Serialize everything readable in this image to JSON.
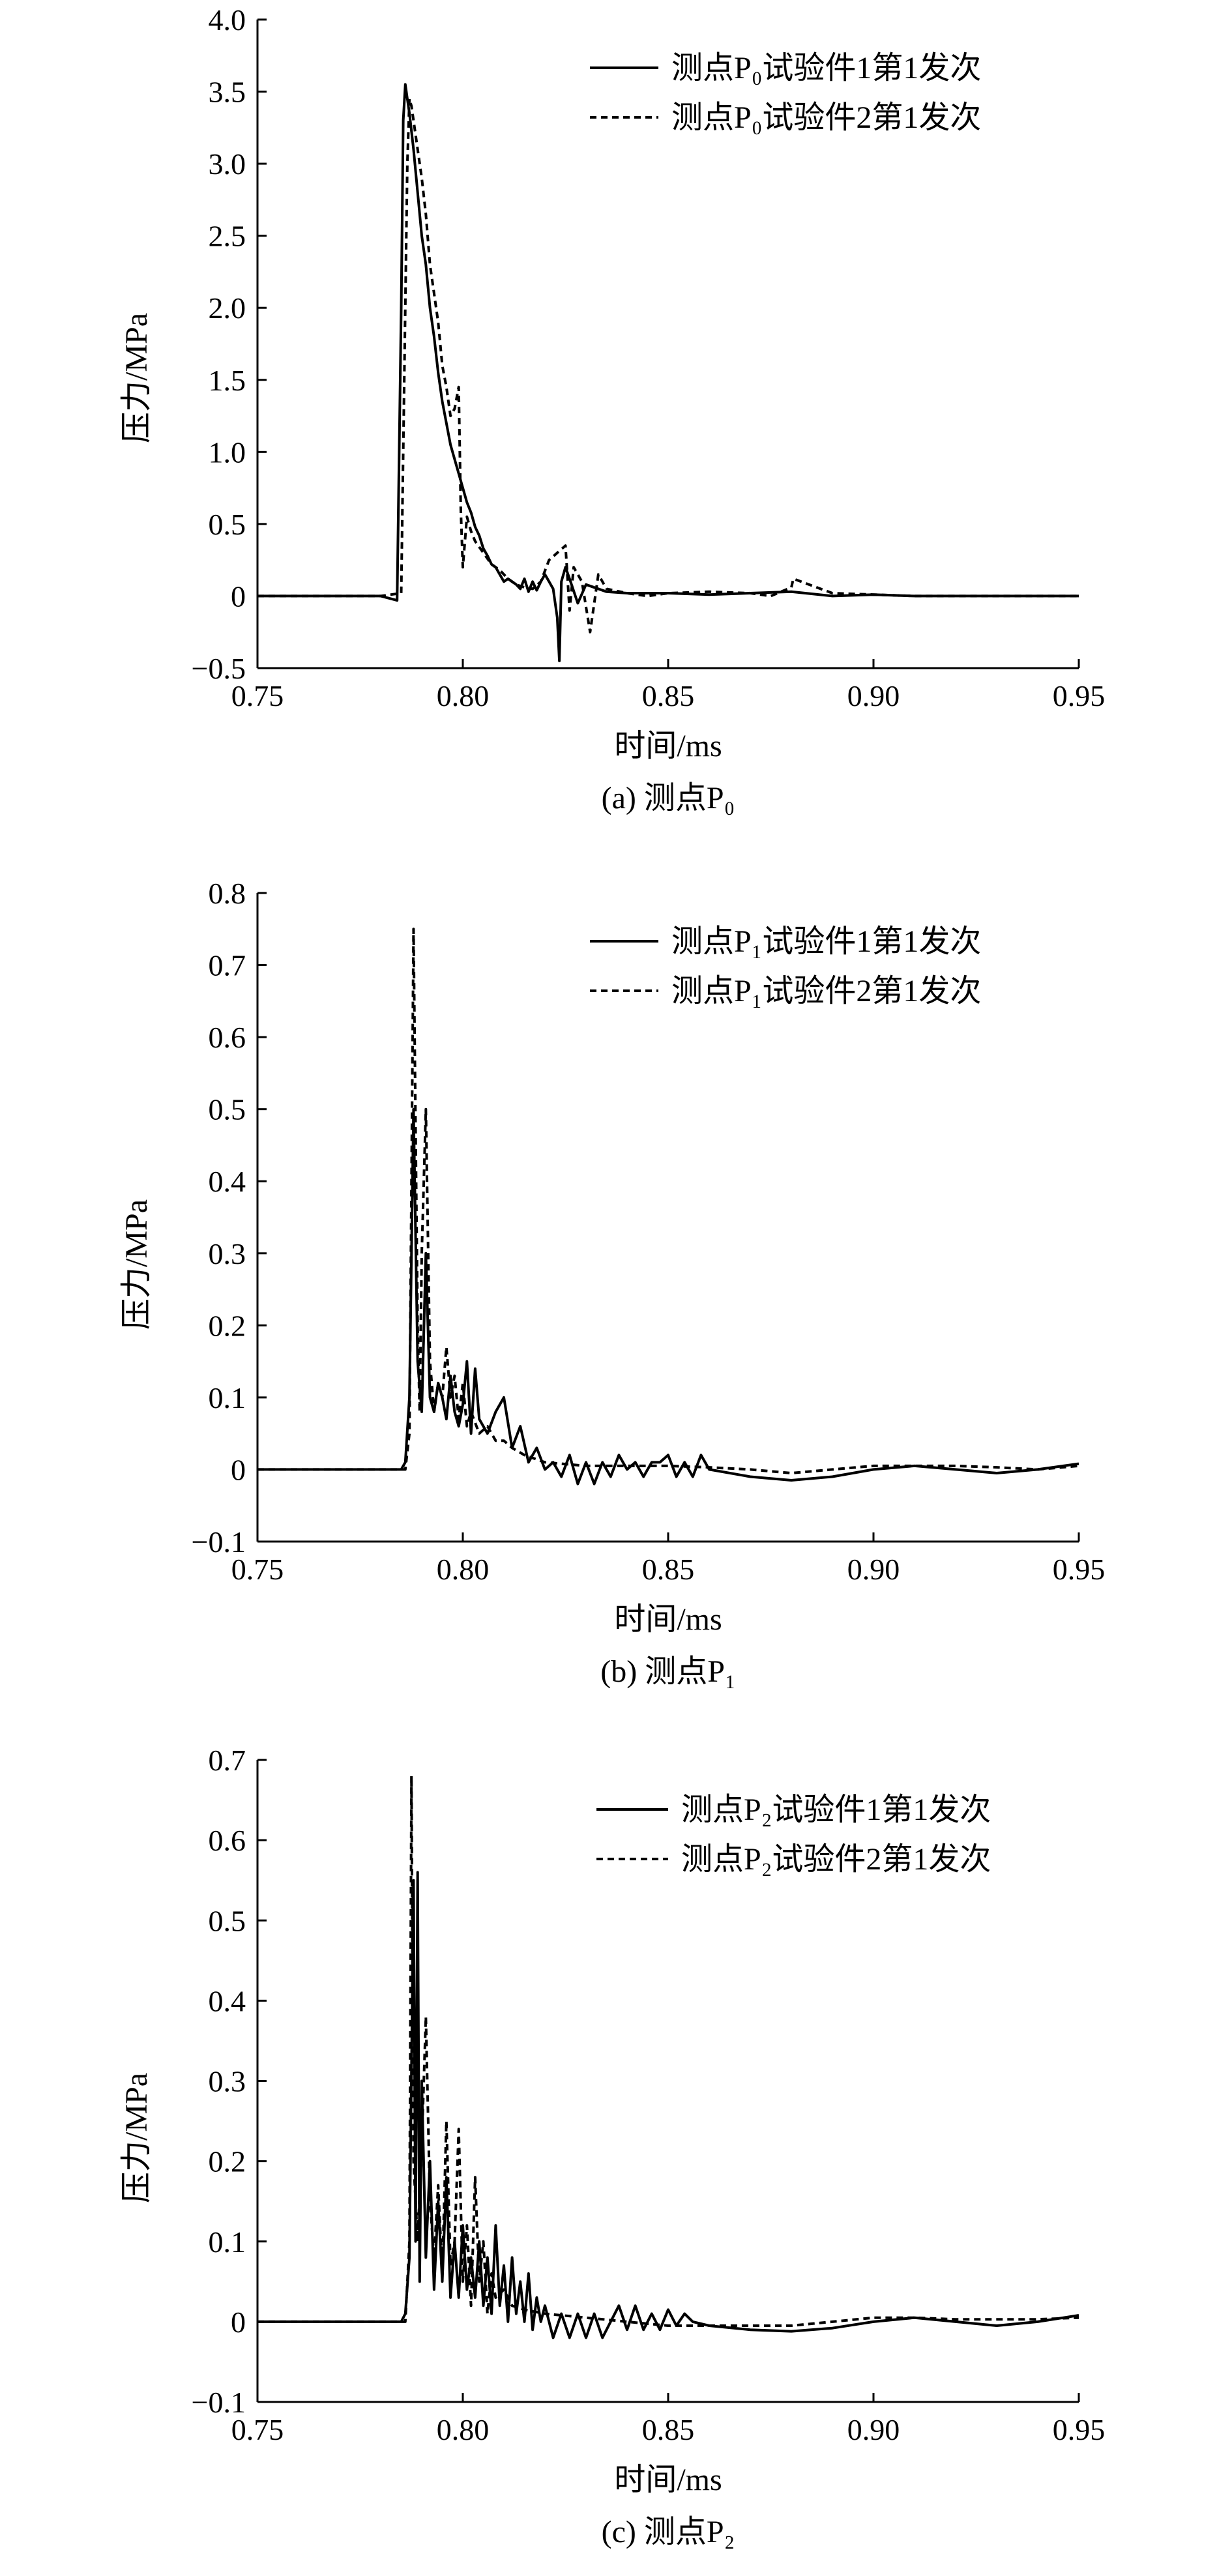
{
  "figure": {
    "panels": [
      {
        "caption": "(a) 测点P₀",
        "legend": [
          "测点P₀试验件1第1发次",
          "测点P₀试验件2第1发次"
        ],
        "ylabel": "压力/MPa",
        "xlabel": "时间/ms",
        "xticks": [
          "0.75",
          "0.80",
          "0.85",
          "0.90",
          "0.95"
        ],
        "yticks": [
          "−0.5",
          "0",
          "0.5",
          "1.0",
          "1.5",
          "2.0",
          "2.5",
          "3.0",
          "3.5",
          "4.0"
        ]
      },
      {
        "caption": "(b) 测点P₁",
        "legend": [
          "测点P₁试验件1第1发次",
          "测点P₁试验件2第1发次"
        ],
        "ylabel": "压力/MPa",
        "xlabel": "时间/ms",
        "xticks": [
          "0.75",
          "0.80",
          "0.85",
          "0.90",
          "0.95"
        ],
        "yticks": [
          "−0.1",
          "0",
          "0.1",
          "0.2",
          "0.3",
          "0.4",
          "0.5",
          "0.6",
          "0.7",
          "0.8"
        ]
      },
      {
        "caption": "(c) 测点P₂",
        "legend": [
          "测点P₂试验件1第1发次",
          "测点P₂试验件2第1发次"
        ],
        "ylabel": "压力/MPa",
        "xlabel": "时间/ms",
        "xticks": [
          "0.75",
          "0.80",
          "0.85",
          "0.90",
          "0.95"
        ],
        "yticks": [
          "−0.1",
          "0",
          "0.1",
          "0.2",
          "0.3",
          "0.4",
          "0.5",
          "0.6",
          "0.7"
        ]
      }
    ]
  },
  "chart_data": [
    {
      "type": "line",
      "xlabel": "时间/ms",
      "ylabel": "压力/MPa",
      "xlim": [
        0.75,
        0.95
      ],
      "ylim": [
        -0.5,
        4.0
      ],
      "grid": false,
      "legend_position": "top-right",
      "series": [
        {
          "name": "测点P₀试验件1第1发次",
          "style": "solid",
          "x": [
            0.75,
            0.78,
            0.784,
            0.785,
            0.7855,
            0.786,
            0.7865,
            0.787,
            0.788,
            0.789,
            0.79,
            0.791,
            0.792,
            0.793,
            0.794,
            0.795,
            0.796,
            0.797,
            0.798,
            0.799,
            0.8,
            0.801,
            0.802,
            0.803,
            0.804,
            0.805,
            0.806,
            0.807,
            0.808,
            0.809,
            0.81,
            0.811,
            0.812,
            0.813,
            0.814,
            0.815,
            0.816,
            0.817,
            0.818,
            0.819,
            0.82,
            0.821,
            0.822,
            0.823,
            0.8235,
            0.824,
            0.825,
            0.826,
            0.828,
            0.83,
            0.835,
            0.84,
            0.85,
            0.86,
            0.87,
            0.88,
            0.89,
            0.9,
            0.91,
            0.92,
            0.95
          ],
          "y": [
            0,
            0,
            -0.03,
            2.0,
            3.3,
            3.55,
            3.45,
            3.35,
            3.1,
            2.8,
            2.5,
            2.3,
            2.0,
            1.8,
            1.55,
            1.35,
            1.2,
            1.05,
            0.95,
            0.85,
            0.75,
            0.65,
            0.58,
            0.48,
            0.42,
            0.33,
            0.28,
            0.22,
            0.2,
            0.15,
            0.1,
            0.12,
            0.1,
            0.08,
            0.05,
            0.12,
            0.03,
            0.1,
            0.04,
            0.1,
            0.15,
            0.1,
            0.05,
            -0.15,
            -0.45,
            0.1,
            0.2,
            0.12,
            -0.05,
            0.08,
            0.03,
            0.02,
            0.02,
            0.01,
            0.02,
            0.03,
            0.0,
            0.01,
            0.0,
            0.0,
            0.0
          ]
        },
        {
          "name": "测点P₀试验件2第1发次",
          "style": "dashed",
          "x": [
            0.75,
            0.78,
            0.785,
            0.7865,
            0.787,
            0.7875,
            0.788,
            0.789,
            0.79,
            0.791,
            0.792,
            0.793,
            0.794,
            0.795,
            0.796,
            0.797,
            0.798,
            0.799,
            0.7995,
            0.8,
            0.801,
            0.802,
            0.803,
            0.805,
            0.807,
            0.809,
            0.811,
            0.813,
            0.815,
            0.817,
            0.819,
            0.821,
            0.823,
            0.825,
            0.826,
            0.827,
            0.829,
            0.831,
            0.833,
            0.835,
            0.84,
            0.845,
            0.85,
            0.86,
            0.87,
            0.875,
            0.88,
            0.8805,
            0.89,
            0.9,
            0.91,
            0.95
          ],
          "y": [
            0,
            0,
            0.02,
            3.0,
            3.45,
            3.4,
            3.3,
            3.1,
            2.9,
            2.65,
            2.3,
            2.1,
            1.9,
            1.6,
            1.45,
            1.25,
            1.3,
            1.45,
            0.6,
            0.2,
            0.55,
            0.45,
            0.38,
            0.3,
            0.22,
            0.18,
            0.12,
            0.08,
            0.06,
            0.05,
            0.1,
            0.25,
            0.3,
            0.35,
            -0.1,
            0.2,
            0.1,
            -0.25,
            0.15,
            0.05,
            0.02,
            0.0,
            0.02,
            0.03,
            0.02,
            0.0,
            0.06,
            0.12,
            0.02,
            0.01,
            0.0,
            0.0
          ]
        }
      ]
    },
    {
      "type": "line",
      "xlabel": "时间/ms",
      "ylabel": "压力/MPa",
      "xlim": [
        0.75,
        0.95
      ],
      "ylim": [
        -0.1,
        0.8
      ],
      "grid": false,
      "legend_position": "top-right",
      "series": [
        {
          "name": "测点P₁试验件1第1发次",
          "style": "solid",
          "x": [
            0.75,
            0.785,
            0.786,
            0.787,
            0.788,
            0.789,
            0.79,
            0.791,
            0.792,
            0.793,
            0.794,
            0.795,
            0.796,
            0.797,
            0.798,
            0.799,
            0.8,
            0.801,
            0.802,
            0.803,
            0.804,
            0.806,
            0.808,
            0.81,
            0.812,
            0.814,
            0.816,
            0.818,
            0.82,
            0.822,
            0.824,
            0.826,
            0.828,
            0.83,
            0.832,
            0.834,
            0.836,
            0.838,
            0.84,
            0.842,
            0.844,
            0.846,
            0.848,
            0.85,
            0.852,
            0.854,
            0.856,
            0.858,
            0.86,
            0.87,
            0.88,
            0.89,
            0.9,
            0.91,
            0.92,
            0.93,
            0.94,
            0.95
          ],
          "y": [
            0,
            0,
            0.01,
            0.1,
            0.5,
            0.15,
            0.08,
            0.3,
            0.1,
            0.08,
            0.12,
            0.1,
            0.07,
            0.13,
            0.08,
            0.06,
            0.09,
            0.15,
            0.05,
            0.14,
            0.07,
            0.05,
            0.08,
            0.1,
            0.03,
            0.06,
            0.01,
            0.03,
            0.0,
            0.01,
            -0.01,
            0.02,
            -0.02,
            0.01,
            -0.02,
            0.01,
            -0.01,
            0.02,
            0.0,
            0.01,
            -0.01,
            0.01,
            0.01,
            0.02,
            -0.01,
            0.01,
            -0.01,
            0.02,
            0.0,
            -0.01,
            -0.015,
            -0.01,
            0.0,
            0.005,
            0.0,
            -0.005,
            0.0,
            0.008
          ]
        },
        {
          "name": "测点P₁试验件2第1发次",
          "style": "dashed",
          "x": [
            0.75,
            0.786,
            0.787,
            0.788,
            0.789,
            0.7895,
            0.79,
            0.791,
            0.792,
            0.793,
            0.794,
            0.795,
            0.796,
            0.797,
            0.798,
            0.799,
            0.8,
            0.801,
            0.802,
            0.804,
            0.806,
            0.808,
            0.81,
            0.812,
            0.815,
            0.82,
            0.83,
            0.84,
            0.85,
            0.86,
            0.87,
            0.88,
            0.89,
            0.9,
            0.91,
            0.92,
            0.93,
            0.94,
            0.95
          ],
          "y": [
            0,
            0,
            0.05,
            0.75,
            0.2,
            0.08,
            0.3,
            0.5,
            0.15,
            0.08,
            0.12,
            0.1,
            0.17,
            0.1,
            0.13,
            0.07,
            0.12,
            0.06,
            0.08,
            0.05,
            0.06,
            0.04,
            0.04,
            0.03,
            0.02,
            0.01,
            0.005,
            0.005,
            0.005,
            0.003,
            0.0,
            -0.005,
            0.0,
            0.005,
            0.005,
            0.005,
            0.003,
            0.0,
            0.005
          ]
        }
      ]
    },
    {
      "type": "line",
      "xlabel": "时间/ms",
      "ylabel": "压力/MPa",
      "xlim": [
        0.75,
        0.95
      ],
      "ylim": [
        -0.1,
        0.7
      ],
      "grid": false,
      "legend_position": "top-right",
      "series": [
        {
          "name": "测点P₂试验件1第1发次",
          "style": "solid",
          "x": [
            0.75,
            0.785,
            0.786,
            0.787,
            0.788,
            0.7885,
            0.789,
            0.7895,
            0.79,
            0.791,
            0.792,
            0.793,
            0.794,
            0.795,
            0.796,
            0.797,
            0.798,
            0.799,
            0.8,
            0.801,
            0.802,
            0.803,
            0.804,
            0.805,
            0.806,
            0.807,
            0.808,
            0.809,
            0.81,
            0.811,
            0.812,
            0.813,
            0.814,
            0.815,
            0.816,
            0.817,
            0.818,
            0.819,
            0.82,
            0.822,
            0.824,
            0.826,
            0.828,
            0.83,
            0.832,
            0.834,
            0.836,
            0.838,
            0.84,
            0.842,
            0.844,
            0.846,
            0.848,
            0.85,
            0.852,
            0.854,
            0.856,
            0.86,
            0.87,
            0.88,
            0.89,
            0.9,
            0.91,
            0.92,
            0.93,
            0.94,
            0.95
          ],
          "y": [
            0,
            0,
            0.01,
            0.08,
            0.55,
            0.1,
            0.56,
            0.05,
            0.3,
            0.08,
            0.2,
            0.04,
            0.15,
            0.05,
            0.18,
            0.03,
            0.1,
            0.03,
            0.12,
            0.04,
            0.08,
            0.03,
            0.1,
            0.02,
            0.08,
            0.01,
            0.12,
            0.02,
            0.07,
            0.0,
            0.08,
            0.01,
            0.05,
            0.0,
            0.06,
            -0.01,
            0.03,
            0.0,
            0.02,
            -0.02,
            0.01,
            -0.02,
            0.01,
            -0.02,
            0.01,
            -0.02,
            0.0,
            0.02,
            -0.01,
            0.02,
            -0.01,
            0.01,
            -0.01,
            0.015,
            -0.005,
            0.01,
            0.0,
            -0.005,
            -0.01,
            -0.012,
            -0.008,
            0.0,
            0.005,
            0.0,
            -0.005,
            0.0,
            0.008
          ]
        },
        {
          "name": "测点P₂试验件2第1发次",
          "style": "dashed",
          "x": [
            0.75,
            0.786,
            0.787,
            0.7875,
            0.788,
            0.789,
            0.79,
            0.791,
            0.792,
            0.793,
            0.794,
            0.795,
            0.796,
            0.797,
            0.798,
            0.799,
            0.8,
            0.801,
            0.802,
            0.803,
            0.804,
            0.805,
            0.806,
            0.807,
            0.808,
            0.81,
            0.812,
            0.815,
            0.82,
            0.83,
            0.84,
            0.85,
            0.86,
            0.87,
            0.88,
            0.89,
            0.9,
            0.91,
            0.92,
            0.93,
            0.94,
            0.95
          ],
          "y": [
            0,
            0,
            0.1,
            0.68,
            0.2,
            0.1,
            0.22,
            0.38,
            0.15,
            0.08,
            0.17,
            0.06,
            0.25,
            0.07,
            0.1,
            0.24,
            0.05,
            0.12,
            0.02,
            0.18,
            0.05,
            0.1,
            0.01,
            0.06,
            0.03,
            0.04,
            0.02,
            0.015,
            0.01,
            0.005,
            0.0,
            -0.005,
            -0.005,
            -0.005,
            -0.005,
            0.0,
            0.005,
            0.005,
            0.003,
            0.003,
            0.003,
            0.005
          ]
        }
      ]
    }
  ]
}
